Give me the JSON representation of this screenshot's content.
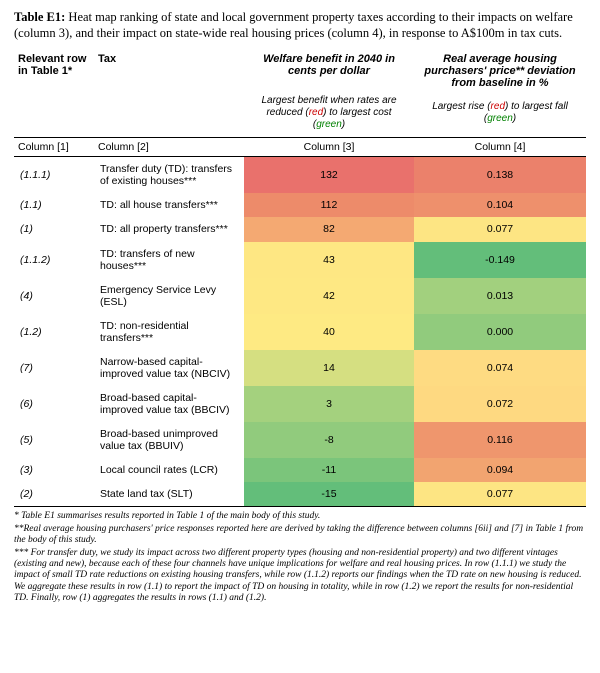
{
  "caption_bold": "Table E1:",
  "caption_rest": " Heat map ranking of state and local government property taxes according to their impacts on welfare (column 3), and their impact on state-wide real housing prices (column 4), in response to A$100m in tax cuts.",
  "headers": {
    "col1": "Relevant row in Table 1*",
    "col2": "Tax",
    "col3": "Welfare benefit in 2040 in cents per dollar",
    "col4": "Real average housing purchasers' price** deviation from baseline in %"
  },
  "subheads": {
    "col3_a": "Largest benefit when rates are reduced (",
    "col3_b": ") to largest cost (",
    "col4_a": "Largest rise (",
    "col4_b": ") to largest fall ("
  },
  "col_labels": {
    "c1": "Column [1]",
    "c2": "Column [2]",
    "c3": "Column [3]",
    "c4": "Column [4]"
  },
  "colors": {
    "r1": "#e9716c",
    "r2": "#ed8b6a",
    "r3": "#f4a972",
    "r4": "#fee783",
    "r5": "#fee883",
    "r6": "#feea83",
    "r7": "#d5df81",
    "r8": "#a4d17e",
    "r9": "#91cb7d",
    "r10": "#7bc57b",
    "r11": "#63be7a",
    "p1": "#eb816b",
    "p2": "#ee906c",
    "p3": "#fde583",
    "p4": "#63be7a",
    "p5": "#a2d07e",
    "p6": "#91cb7d",
    "p7": "#fedb82",
    "p8": "#fed981",
    "p9": "#ef966d",
    "p10": "#f2a470",
    "p11": "#fde583"
  },
  "rows": [
    {
      "ref": "(1.1.1)",
      "tax": "Transfer duty (TD): transfers of existing houses***",
      "welfare": "132",
      "price": "0.138",
      "wc": "r1",
      "pc": "p1"
    },
    {
      "ref": "(1.1)",
      "tax": "TD: all house transfers***",
      "welfare": "112",
      "price": "0.104",
      "wc": "r2",
      "pc": "p2"
    },
    {
      "ref": "(1)",
      "tax": "TD: all property transfers***",
      "welfare": "82",
      "price": "0.077",
      "wc": "r3",
      "pc": "p3"
    },
    {
      "ref": "(1.1.2)",
      "tax": "TD: transfers of new houses***",
      "welfare": "43",
      "price": "-0.149",
      "wc": "r4",
      "pc": "p4"
    },
    {
      "ref": "(4)",
      "tax": "Emergency Service Levy (ESL)",
      "welfare": "42",
      "price": "0.013",
      "wc": "r5",
      "pc": "p5"
    },
    {
      "ref": "(1.2)",
      "tax": "TD: non-residential transfers***",
      "welfare": "40",
      "price": "0.000",
      "wc": "r6",
      "pc": "p6"
    },
    {
      "ref": "(7)",
      "tax": "Narrow-based capital-improved value tax (NBCIV)",
      "welfare": "14",
      "price": "0.074",
      "wc": "r7",
      "pc": "p7"
    },
    {
      "ref": "(6)",
      "tax": "Broad-based capital-improved value tax (BBCIV)",
      "welfare": "3",
      "price": "0.072",
      "wc": "r8",
      "pc": "p8"
    },
    {
      "ref": "(5)",
      "tax": "Broad-based unimproved value tax (BBUIV)",
      "welfare": "-8",
      "price": "0.116",
      "wc": "r9",
      "pc": "p9"
    },
    {
      "ref": "(3)",
      "tax": "Local council rates (LCR)",
      "welfare": "-11",
      "price": "0.094",
      "wc": "r10",
      "pc": "p10"
    },
    {
      "ref": "(2)",
      "tax": "State land tax (SLT)",
      "welfare": "-15",
      "price": "0.077",
      "wc": "r11",
      "pc": "p11"
    }
  ],
  "footnotes": [
    "* Table E1 summarises results reported in Table 1 of the main body of this study.",
    "**Real average housing purchasers' price responses reported here are derived by taking the difference between columns [6ii] and [7] in Table 1 from the body of this study.",
    "*** For transfer duty, we study its impact across two different property types (housing and non-residential property) and two different vintages (existing and new), because each of these four channels have unique implications for welfare and real housing prices. In row (1.1.1) we study the impact of small TD rate reductions on existing housing transfers, while row (1.1.2) reports our findings when the TD rate on new housing is reduced. We aggregate these results in row (1.1) to report the impact of TD on housing in totality, while in row (1.2) we report the results for non-residential TD. Finally, row (1) aggregates the results in rows (1.1) and (1.2)."
  ],
  "words": {
    "red": "red",
    "green": "green"
  }
}
